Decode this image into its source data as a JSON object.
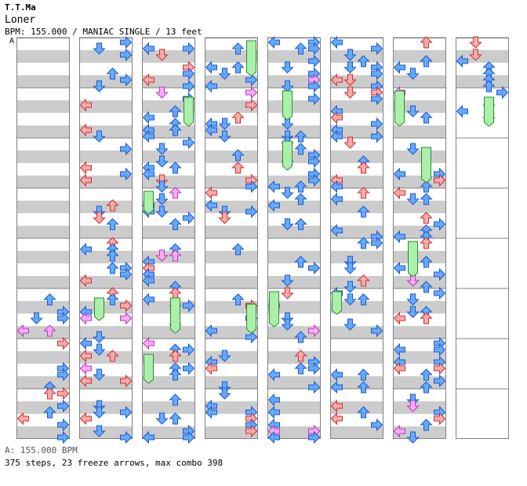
{
  "header": {
    "artist": "T.T.Ma",
    "title": "Loner",
    "meta": "BPM: 155.000 / MANIAC SINGLE / 13 feet"
  },
  "section_label": "A",
  "footer": {
    "bpm_text": "A: 155.000 BPM",
    "stats_text": "375 steps, 23 freeze arrows, max combo 398"
  },
  "colors": {
    "band_gray": "#cccccc",
    "band_white": "#ffffff",
    "border": "#808080",
    "arrow_blue_fill": "#66aaff",
    "arrow_blue_stroke": "#1e5ac8",
    "arrow_red_fill": "#ffaaaa",
    "arrow_red_stroke": "#c83232",
    "arrow_pink_fill": "#ffaaff",
    "arrow_pink_stroke": "#b43cb4",
    "freeze_fill": "#aaf0aa",
    "freeze_stroke": "#2e8b2e"
  },
  "chart_data": {
    "type": "step-chart",
    "mode": "MANIAC SINGLE",
    "bpm": 155.0,
    "difficulty_feet": 13,
    "steps": 375,
    "freeze_arrows": 23,
    "max_combo": 398,
    "columns": 8,
    "measures_per_column": 8,
    "total_measures": 57,
    "lanes": [
      "left",
      "down",
      "up",
      "right"
    ],
    "note_colors": [
      "red",
      "blue",
      "pink",
      "freeze"
    ]
  }
}
